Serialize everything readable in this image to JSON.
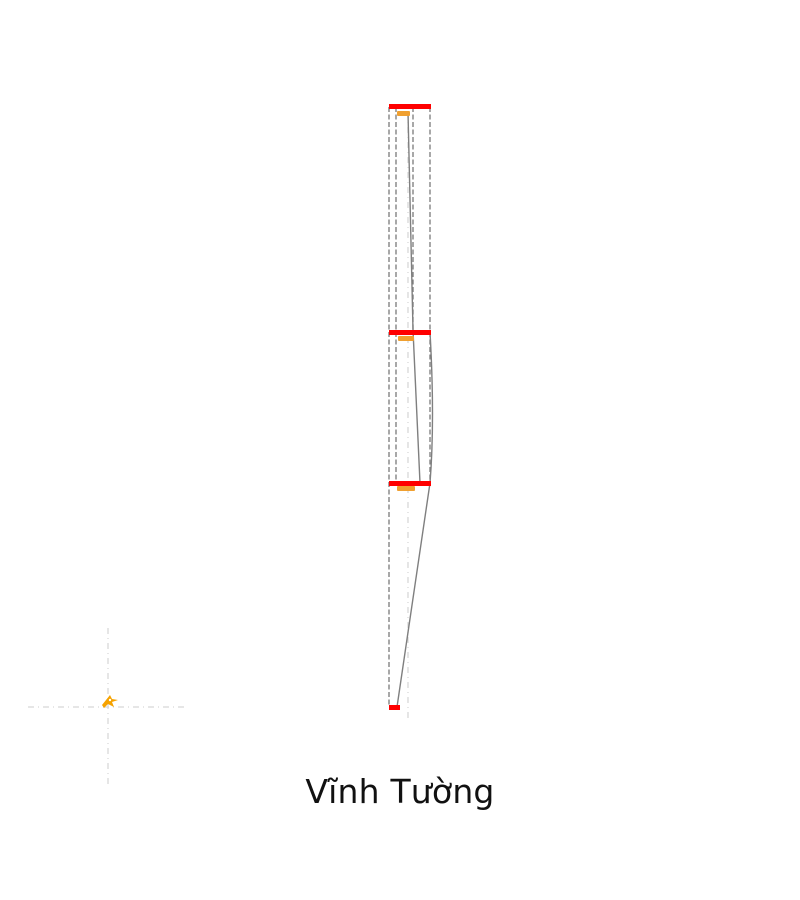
{
  "caption": "Vĩnh Tường",
  "colors": {
    "tier_marker": "#ff0000",
    "hub_marker": "#f0a030",
    "outline": "#7a7a7a",
    "guide": "#cfcfcf",
    "icon": "#f5a200",
    "background": "#ffffff"
  },
  "icons": {
    "origin_marker": "bird-icon"
  }
}
